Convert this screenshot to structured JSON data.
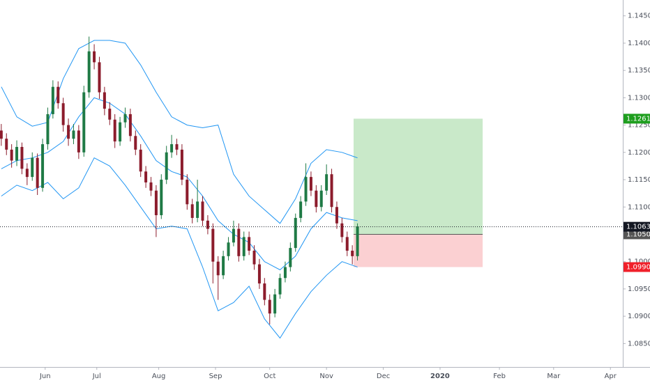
{
  "chart_data": {
    "type": "candlestick",
    "x": [
      0,
      2,
      4,
      6,
      8,
      10,
      12,
      14,
      16,
      18,
      20,
      22,
      24,
      26,
      28,
      30,
      32,
      34,
      36,
      38,
      40,
      42,
      44,
      46,
      48,
      50,
      52,
      54,
      56,
      58,
      60,
      62,
      64,
      66,
      68,
      70,
      72,
      74,
      76,
      78,
      80,
      82,
      84,
      86,
      88,
      90,
      92,
      94,
      96,
      98,
      100,
      102,
      104,
      106,
      108,
      110,
      112,
      114,
      116,
      118,
      120,
      122,
      124,
      126,
      128,
      130,
      132,
      134,
      136,
      138
    ],
    "candles": [
      [
        1.124,
        1.1252,
        1.1212,
        1.1225
      ],
      [
        1.1225,
        1.1235,
        1.1195,
        1.1205
      ],
      [
        1.1205,
        1.1215,
        1.1172,
        1.1185
      ],
      [
        1.1185,
        1.1222,
        1.1175,
        1.121
      ],
      [
        1.121,
        1.1218,
        1.116,
        1.117
      ],
      [
        1.117,
        1.118,
        1.114,
        1.1155
      ],
      [
        1.1155,
        1.12,
        1.1148,
        1.119
      ],
      [
        1.119,
        1.1198,
        1.1122,
        1.1135
      ],
      [
        1.1135,
        1.1225,
        1.1128,
        1.1215
      ],
      [
        1.1215,
        1.1282,
        1.1205,
        1.127
      ],
      [
        1.127,
        1.1332,
        1.1262,
        1.132
      ],
      [
        1.132,
        1.133,
        1.128,
        1.129
      ],
      [
        1.129,
        1.13,
        1.1238,
        1.125
      ],
      [
        1.125,
        1.1262,
        1.1212,
        1.1225
      ],
      [
        1.1225,
        1.1252,
        1.1215,
        1.124
      ],
      [
        1.124,
        1.125,
        1.1188,
        1.12
      ],
      [
        1.12,
        1.1322,
        1.1192,
        1.131
      ],
      [
        1.131,
        1.1412,
        1.13,
        1.1385
      ],
      [
        1.1385,
        1.1398,
        1.1352,
        1.1365
      ],
      [
        1.1365,
        1.1375,
        1.1298,
        1.131
      ],
      [
        1.131,
        1.132,
        1.1268,
        1.128
      ],
      [
        1.128,
        1.1292,
        1.125,
        1.126
      ],
      [
        1.126,
        1.127,
        1.1208,
        1.122
      ],
      [
        1.122,
        1.1265,
        1.1212,
        1.1255
      ],
      [
        1.1255,
        1.1282,
        1.1245,
        1.127
      ],
      [
        1.127,
        1.128,
        1.122,
        1.123
      ],
      [
        1.123,
        1.124,
        1.1195,
        1.1205
      ],
      [
        1.1205,
        1.1215,
        1.1155,
        1.1165
      ],
      [
        1.1165,
        1.1175,
        1.1135,
        1.1145
      ],
      [
        1.1145,
        1.1155,
        1.112,
        1.113
      ],
      [
        1.113,
        1.114,
        1.1045,
        1.1085
      ],
      [
        1.1085,
        1.116,
        1.1078,
        1.115
      ],
      [
        1.115,
        1.1212,
        1.1142,
        1.12
      ],
      [
        1.12,
        1.1232,
        1.119,
        1.1215
      ],
      [
        1.1215,
        1.1225,
        1.1195,
        1.1205
      ],
      [
        1.1205,
        1.1215,
        1.114,
        1.115
      ],
      [
        1.115,
        1.116,
        1.1095,
        1.1105
      ],
      [
        1.1105,
        1.1115,
        1.107,
        1.108
      ],
      [
        1.108,
        1.115,
        1.1072,
        1.111
      ],
      [
        1.111,
        1.112,
        1.1065,
        1.1075
      ],
      [
        1.1075,
        1.1085,
        1.105,
        1.106
      ],
      [
        1.106,
        1.107,
        1.096,
        1.1
      ],
      [
        1.1,
        1.101,
        1.093,
        1.0975
      ],
      [
        1.0975,
        1.102,
        1.0968,
        1.101
      ],
      [
        1.101,
        1.1045,
        1.1002,
        1.1035
      ],
      [
        1.1035,
        1.1075,
        1.1028,
        1.106
      ],
      [
        1.106,
        1.107,
        1.1,
        1.101
      ],
      [
        1.101,
        1.1055,
        1.1002,
        1.1045
      ],
      [
        1.1045,
        1.1055,
        1.1012,
        1.102
      ],
      [
        1.102,
        1.103,
        1.0985,
        1.0995
      ],
      [
        1.0995,
        1.1005,
        1.095,
        1.096
      ],
      [
        1.096,
        1.097,
        1.092,
        1.093
      ],
      [
        1.093,
        1.094,
        1.0885,
        1.0905
      ],
      [
        1.0905,
        1.095,
        1.0898,
        1.094
      ],
      [
        1.094,
        1.0978,
        1.0932,
        1.097
      ],
      [
        1.097,
        1.1,
        1.0962,
        1.099
      ],
      [
        1.099,
        1.1035,
        1.0982,
        1.1025
      ],
      [
        1.1025,
        1.1088,
        1.1018,
        1.108
      ],
      [
        1.108,
        1.112,
        1.1072,
        1.111
      ],
      [
        1.111,
        1.118,
        1.1102,
        1.1155
      ],
      [
        1.1155,
        1.1165,
        1.112,
        1.113
      ],
      [
        1.113,
        1.114,
        1.109,
        1.11
      ],
      [
        1.11,
        1.114,
        1.1092,
        1.113
      ],
      [
        1.113,
        1.1178,
        1.1122,
        1.116
      ],
      [
        1.116,
        1.117,
        1.109,
        1.11
      ],
      [
        1.11,
        1.111,
        1.106,
        1.107
      ],
      [
        1.107,
        1.108,
        1.1035,
        1.1045
      ],
      [
        1.1045,
        1.1055,
        1.101,
        1.102
      ],
      [
        1.102,
        1.103,
        1.0995,
        1.101
      ],
      [
        1.101,
        1.107,
        1.1002,
        1.1064
      ]
    ],
    "up_color": "#1f7a45",
    "down_color": "#8c1c2c",
    "bands": {
      "color": "#2196f3",
      "x": [
        0,
        6,
        12,
        18,
        24,
        30,
        36,
        42,
        48,
        54,
        60,
        66,
        72,
        78,
        84,
        90,
        96,
        102,
        108,
        114,
        120,
        126,
        132,
        138
      ],
      "upper": [
        1.132,
        1.1265,
        1.1248,
        1.1255,
        1.1335,
        1.139,
        1.1405,
        1.1405,
        1.14,
        1.136,
        1.131,
        1.1265,
        1.125,
        1.1245,
        1.125,
        1.116,
        1.112,
        1.1095,
        1.107,
        1.1115,
        1.118,
        1.1205,
        1.12,
        1.119
      ],
      "middle": [
        1.117,
        1.1185,
        1.119,
        1.12,
        1.122,
        1.1265,
        1.13,
        1.129,
        1.127,
        1.123,
        1.1185,
        1.1165,
        1.1155,
        1.112,
        1.1075,
        1.105,
        1.1035,
        1.1,
        1.0985,
        1.101,
        1.106,
        1.109,
        1.108,
        1.1075
      ],
      "lower": [
        1.112,
        1.114,
        1.113,
        1.1145,
        1.1115,
        1.1135,
        1.119,
        1.1175,
        1.114,
        1.11,
        1.106,
        1.1065,
        1.106,
        1.099,
        1.091,
        1.0925,
        1.0955,
        1.0895,
        1.086,
        1.0905,
        1.0945,
        1.0975,
        1.1,
        1.099
      ]
    },
    "position": {
      "x_start": 136.5,
      "x_end": 186.5,
      "target": 1.12617,
      "target_color": "#1e9e1e",
      "entry": {
        "value": 1.105,
        "label": "1.10500"
      },
      "entry_color": "#555555",
      "stop": {
        "value": 1.099,
        "label": "1.09900"
      },
      "stop_color": "#f0202a",
      "profit_fill": "#c9e9c9",
      "loss_fill": "#fbd0d2"
    },
    "last_price": 1.10638,
    "last_price_color": "#131722",
    "xlim": [
      -0.5,
      240.8
    ],
    "ylim": [
      1.0816,
      1.1479
    ],
    "xticks": [
      {
        "value": 17,
        "label": "Jun"
      },
      {
        "value": 37,
        "label": "Jul"
      },
      {
        "value": 61,
        "label": "Aug"
      },
      {
        "value": 83,
        "label": "Sep"
      },
      {
        "value": 104,
        "label": "Oct"
      },
      {
        "value": 126,
        "label": "Nov"
      },
      {
        "value": 148,
        "label": "Dec"
      },
      {
        "value": 170,
        "label": "2020"
      },
      {
        "value": 193,
        "label": "Feb"
      },
      {
        "value": 214,
        "label": "Mar"
      },
      {
        "value": 236,
        "label": "Apr"
      }
    ],
    "yticks": [
      {
        "value": 1.085,
        "label": "1.08500"
      },
      {
        "value": 1.09,
        "label": "1.09000"
      },
      {
        "value": 1.095,
        "label": "1.09500"
      },
      {
        "value": 1.1,
        "label": "1.10000"
      },
      {
        "value": 1.105,
        "label": "1.10500"
      },
      {
        "value": 1.11,
        "label": "1.11000"
      },
      {
        "value": 1.115,
        "label": "1.11500"
      },
      {
        "value": 1.12,
        "label": "1.12000"
      },
      {
        "value": 1.125,
        "label": "1.12500"
      },
      {
        "value": 1.13,
        "label": "1.13000"
      },
      {
        "value": 1.135,
        "label": "1.13500"
      },
      {
        "value": 1.14,
        "label": "1.14000"
      },
      {
        "value": 1.145,
        "label": "1.14500"
      }
    ]
  }
}
